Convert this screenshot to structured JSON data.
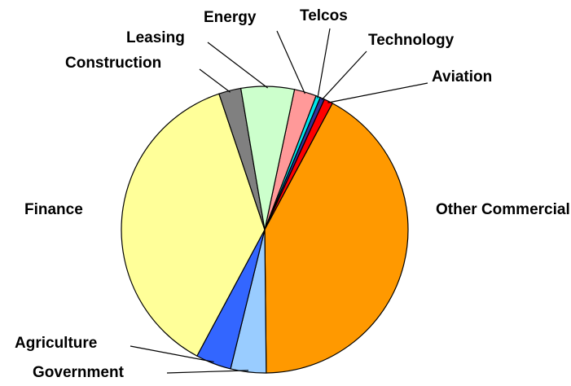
{
  "chart_data": {
    "type": "pie",
    "categories": [
      "Energy",
      "Telcos",
      "Technology",
      "Aviation",
      "Other Commercial",
      "Government",
      "Agriculture",
      "Finance",
      "Construction",
      "Leasing"
    ],
    "values": [
      2.5,
      0.5,
      0.5,
      1,
      42,
      4,
      4,
      37,
      2.5,
      6
    ],
    "colors": [
      "#ff9999",
      "#00e5ee",
      "#333399",
      "#ff0000",
      "#ff9900",
      "#99ccff",
      "#3366ff",
      "#ffff99",
      "#808080",
      "#ccffcc"
    ]
  }
}
